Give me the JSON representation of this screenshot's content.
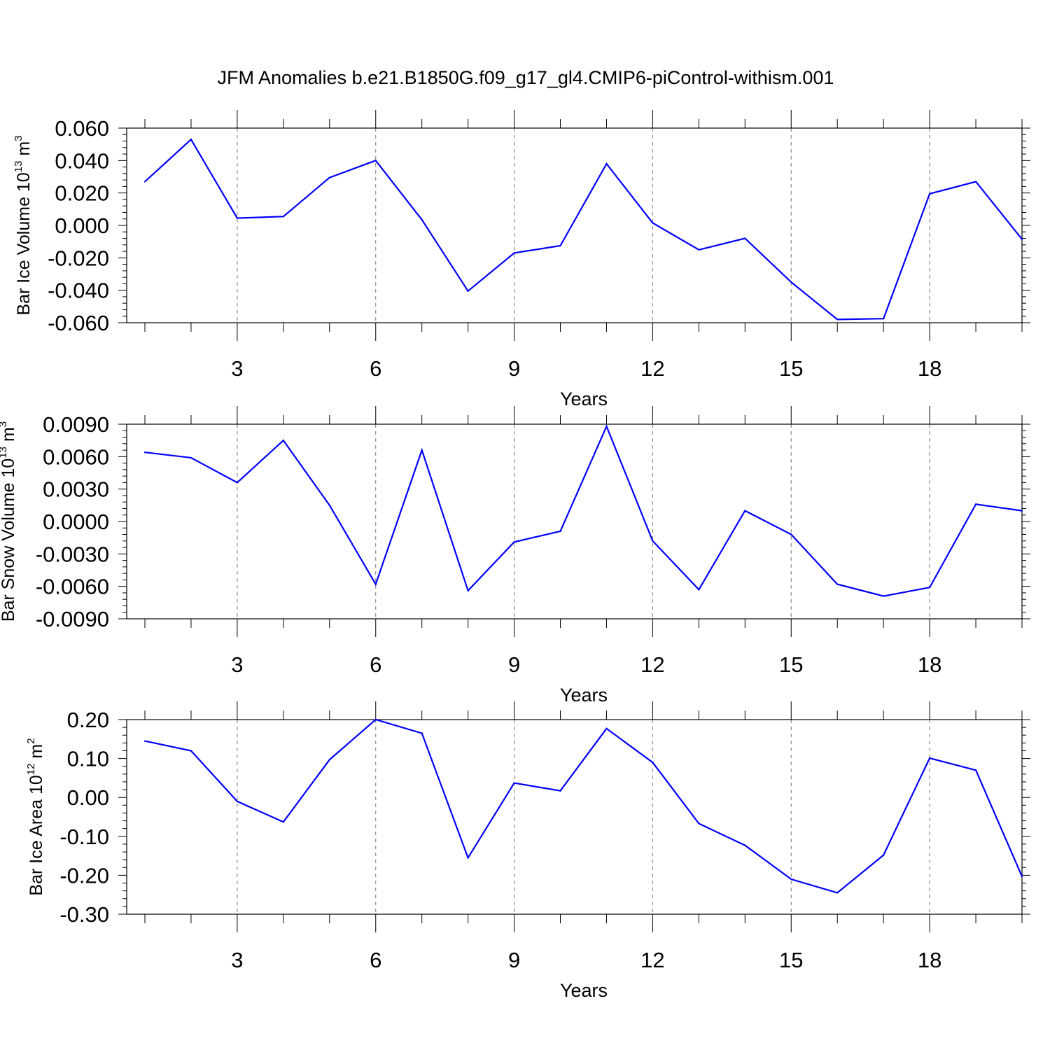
{
  "chart_data": {
    "title": "JFM Anomalies b.e21.B1850G.f09_g17_gl4.CMIP6-piControl-withism.001",
    "panels": [
      {
        "type": "line",
        "ylabel": {
          "prefix": "Bar Ice Volume 10",
          "exponent": "13",
          "unit": " m",
          "unit_exponent": "3"
        },
        "xlabel": "Years",
        "x": [
          1,
          2,
          3,
          4,
          5,
          6,
          7,
          8,
          9,
          10,
          11,
          12,
          13,
          14,
          15,
          16,
          17,
          18,
          19,
          20
        ],
        "values": [
          0.027,
          0.053,
          0.0045,
          0.0055,
          0.0295,
          0.04,
          0.0035,
          -0.0405,
          -0.017,
          -0.0125,
          0.038,
          0.0015,
          -0.015,
          -0.008,
          -0.035,
          -0.058,
          -0.0575,
          0.0195,
          0.027,
          -0.0085
        ],
        "ylim": [
          -0.06,
          0.06
        ],
        "yticks": [
          -0.06,
          -0.04,
          -0.02,
          0.0,
          0.02,
          0.04,
          0.06
        ],
        "ytick_labels": [
          "-0.060",
          "-0.040",
          "-0.020",
          "0.000",
          "0.020",
          "0.040",
          "0.060"
        ],
        "xlim": [
          1,
          20
        ],
        "xticks": [
          3,
          6,
          9,
          12,
          15,
          18
        ],
        "xtick_labels": [
          "3",
          "6",
          "9",
          "12",
          "15",
          "18"
        ],
        "grid": "vertical dashed",
        "color": "#0000ff"
      },
      {
        "type": "line",
        "ylabel": {
          "prefix": "Bar Snow Volume 10",
          "exponent": "13",
          "unit": " m",
          "unit_exponent": "3"
        },
        "xlabel": "Years",
        "x": [
          1,
          2,
          3,
          4,
          5,
          6,
          7,
          8,
          9,
          10,
          11,
          12,
          13,
          14,
          15,
          16,
          17,
          18,
          19,
          20
        ],
        "values": [
          0.0064,
          0.0059,
          0.0036,
          0.0075,
          0.0015,
          -0.0058,
          0.0066,
          -0.0064,
          -0.0019,
          -0.0009,
          0.0088,
          -0.0018,
          -0.0063,
          0.001,
          -0.0012,
          -0.0058,
          -0.0069,
          -0.0061,
          0.0016,
          0.001
        ],
        "ylim": [
          -0.009,
          0.009
        ],
        "yticks": [
          -0.009,
          -0.006,
          -0.003,
          0.0,
          0.003,
          0.006,
          0.009
        ],
        "ytick_labels": [
          "-0.0090",
          "-0.0060",
          "-0.0030",
          "0.0000",
          "0.0030",
          "0.0060",
          "0.0090"
        ],
        "xlim": [
          1,
          20
        ],
        "xticks": [
          3,
          6,
          9,
          12,
          15,
          18
        ],
        "xtick_labels": [
          "3",
          "6",
          "9",
          "12",
          "15",
          "18"
        ],
        "grid": "vertical dashed",
        "color": "#0000ff"
      },
      {
        "type": "line",
        "ylabel": {
          "prefix": "Bar Ice Area 10",
          "exponent": "12",
          "unit": " m",
          "unit_exponent": "2"
        },
        "xlabel": "Years",
        "x": [
          1,
          2,
          3,
          4,
          5,
          6,
          7,
          8,
          9,
          10,
          11,
          12,
          13,
          14,
          15,
          16,
          17,
          18,
          19,
          20
        ],
        "values": [
          0.145,
          0.12,
          -0.01,
          -0.063,
          0.097,
          0.2,
          0.165,
          -0.155,
          0.037,
          0.017,
          0.177,
          0.09,
          -0.067,
          -0.123,
          -0.21,
          -0.245,
          -0.148,
          0.101,
          0.07,
          -0.203
        ],
        "ylim": [
          -0.3,
          0.2
        ],
        "yticks": [
          -0.3,
          -0.2,
          -0.1,
          0.0,
          0.1,
          0.2
        ],
        "ytick_labels": [
          "-0.30",
          "-0.20",
          "-0.10",
          "0.00",
          "0.10",
          "0.20"
        ],
        "xlim": [
          1,
          20
        ],
        "xticks": [
          3,
          6,
          9,
          12,
          15,
          18
        ],
        "xtick_labels": [
          "3",
          "6",
          "9",
          "12",
          "15",
          "18"
        ],
        "grid": "vertical dashed",
        "color": "#0000ff"
      }
    ]
  }
}
